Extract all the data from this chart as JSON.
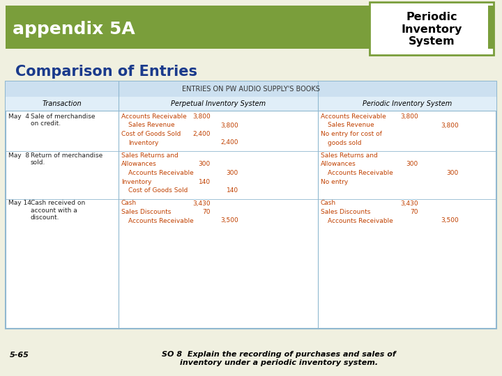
{
  "bg_color": "#f0f0e0",
  "header_bg": "#7a9e3b",
  "header_text": "appendix 5A",
  "header_text_color": "#ffffff",
  "box_title": "Periodic\nInventory\nSystem",
  "box_border_color": "#7a9e3b",
  "box_text_color": "#000000",
  "subtitle": "Comparison of Entries",
  "subtitle_color": "#1a3a8c",
  "table_header_bg": "#cce0f0",
  "table_header2_bg": "#e0eef8",
  "table_border_color": "#90b8d0",
  "table_title": "ENTRIES ON PW AUDIO SUPPLY'S BOOKS",
  "col_headers": [
    "Transaction",
    "Perpetual Inventory System",
    "Periodic Inventory System"
  ],
  "entry_color": "#c04000",
  "footer_left": "5-65",
  "footer_text": "SO 8  Explain the recording of purchases and sales of\ninventory under a periodic inventory system.",
  "footer_color": "#000000",
  "rows": [
    {
      "date": "May  4",
      "desc": "Sale of merchandise\non credit.",
      "perp": [
        {
          "text": "Accounts Receivable",
          "debit": "3,800",
          "credit": "",
          "indent": false
        },
        {
          "text": "Sales Revenue",
          "debit": "",
          "credit": "3,800",
          "indent": true
        },
        {
          "text": "Cost of Goods Sold",
          "debit": "2,400",
          "credit": "",
          "indent": false
        },
        {
          "text": "Inventory",
          "debit": "",
          "credit": "2,400",
          "indent": true
        }
      ],
      "period": [
        {
          "text": "Accounts Receivable",
          "debit": "3,800",
          "credit": "",
          "indent": false
        },
        {
          "text": "Sales Revenue",
          "debit": "",
          "credit": "3,800",
          "indent": true
        },
        {
          "text": "No entry for cost of",
          "debit": "",
          "credit": "",
          "indent": false
        },
        {
          "text": "goods sold",
          "debit": "",
          "credit": "",
          "indent": true
        }
      ]
    },
    {
      "date": "May  8",
      "desc": "Return of merchandise\nsold.",
      "perp": [
        {
          "text": "Sales Returns and",
          "debit": "",
          "credit": "",
          "indent": false
        },
        {
          "text": "Allowances",
          "debit": "300",
          "credit": "",
          "indent": false
        },
        {
          "text": "Accounts Receivable",
          "debit": "",
          "credit": "300",
          "indent": true
        },
        {
          "text": "Inventory",
          "debit": "140",
          "credit": "",
          "indent": false
        },
        {
          "text": "Cost of Goods Sold",
          "debit": "",
          "credit": "140",
          "indent": true
        }
      ],
      "period": [
        {
          "text": "Sales Returns and",
          "debit": "",
          "credit": "",
          "indent": false
        },
        {
          "text": "Allowances",
          "debit": "300",
          "credit": "",
          "indent": false
        },
        {
          "text": "Accounts Receivable",
          "debit": "",
          "credit": "300",
          "indent": true
        },
        {
          "text": "No entry",
          "debit": "",
          "credit": "",
          "indent": false
        }
      ]
    },
    {
      "date": "May 14",
      "desc": "Cash received on\naccount with a\ndiscount.",
      "perp": [
        {
          "text": "Cash",
          "debit": "3,430",
          "credit": "",
          "indent": false
        },
        {
          "text": "Sales Discounts",
          "debit": "70",
          "credit": "",
          "indent": false
        },
        {
          "text": "Accounts Receivable",
          "debit": "",
          "credit": "3,500",
          "indent": true
        }
      ],
      "period": [
        {
          "text": "Cash",
          "debit": "3,430",
          "credit": "",
          "indent": false
        },
        {
          "text": "Sales Discounts",
          "debit": "70",
          "credit": "",
          "indent": false
        },
        {
          "text": "Accounts Receivable",
          "debit": "",
          "credit": "3,500",
          "indent": true
        }
      ]
    }
  ]
}
